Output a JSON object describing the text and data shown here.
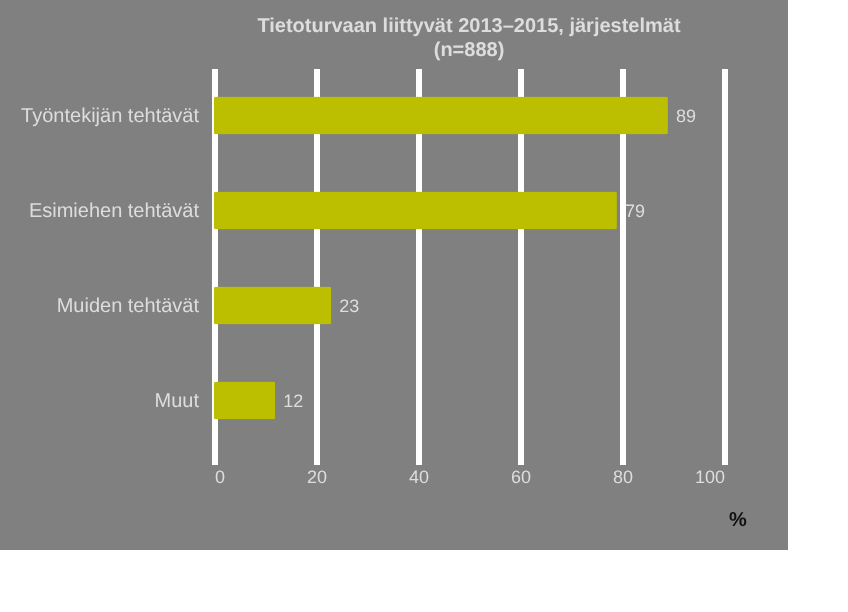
{
  "chart_data": {
    "type": "bar",
    "orientation": "horizontal",
    "title": [
      "Tietoturvaan liittyvät 2013–2015, järjestelmät",
      "(n=888)"
    ],
    "categories": [
      "Työntekijän tehtävät",
      "Esimiehen tehtävät",
      "Muiden tehtävät",
      "Muut"
    ],
    "values": [
      89,
      79,
      23,
      12
    ],
    "color": "#bbbf00",
    "data_labels": true,
    "xlim": [
      0,
      100
    ],
    "xticks": [
      0,
      20,
      40,
      60,
      80,
      100
    ],
    "grid": "x",
    "annotations": [
      "%"
    ]
  }
}
